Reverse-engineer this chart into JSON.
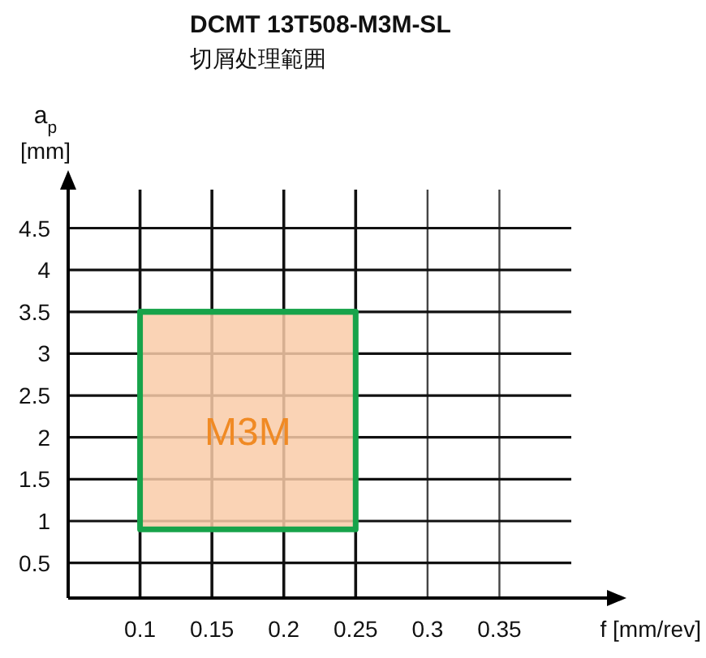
{
  "chart_data": {
    "type": "area",
    "title": "DCMT 13T508-M3M-SL",
    "subtitle": "切屑处理範囲",
    "xlabel": "f [mm/rev]",
    "ylabel": "a$_{p}$ [mm]",
    "xlim": [
      0.05,
      0.4
    ],
    "ylim": [
      0.08,
      4.96
    ],
    "xticks": [
      0.1,
      0.15,
      0.2,
      0.25,
      0.3,
      0.35
    ],
    "yticks": [
      0.5,
      1,
      1.5,
      2,
      2.5,
      3,
      3.5,
      4,
      4.5
    ],
    "grid": true,
    "series": [
      {
        "type": "line",
        "name": "M3M",
        "color": "#17a34a",
        "x": [
          0.1,
          0.25
        ],
        "values": [
          3.5,
          3.5
        ],
        "lower": [
          0.9,
          0.9
        ],
        "upper": [
          3.5,
          3.5
        ]
      }
    ]
  }
}
